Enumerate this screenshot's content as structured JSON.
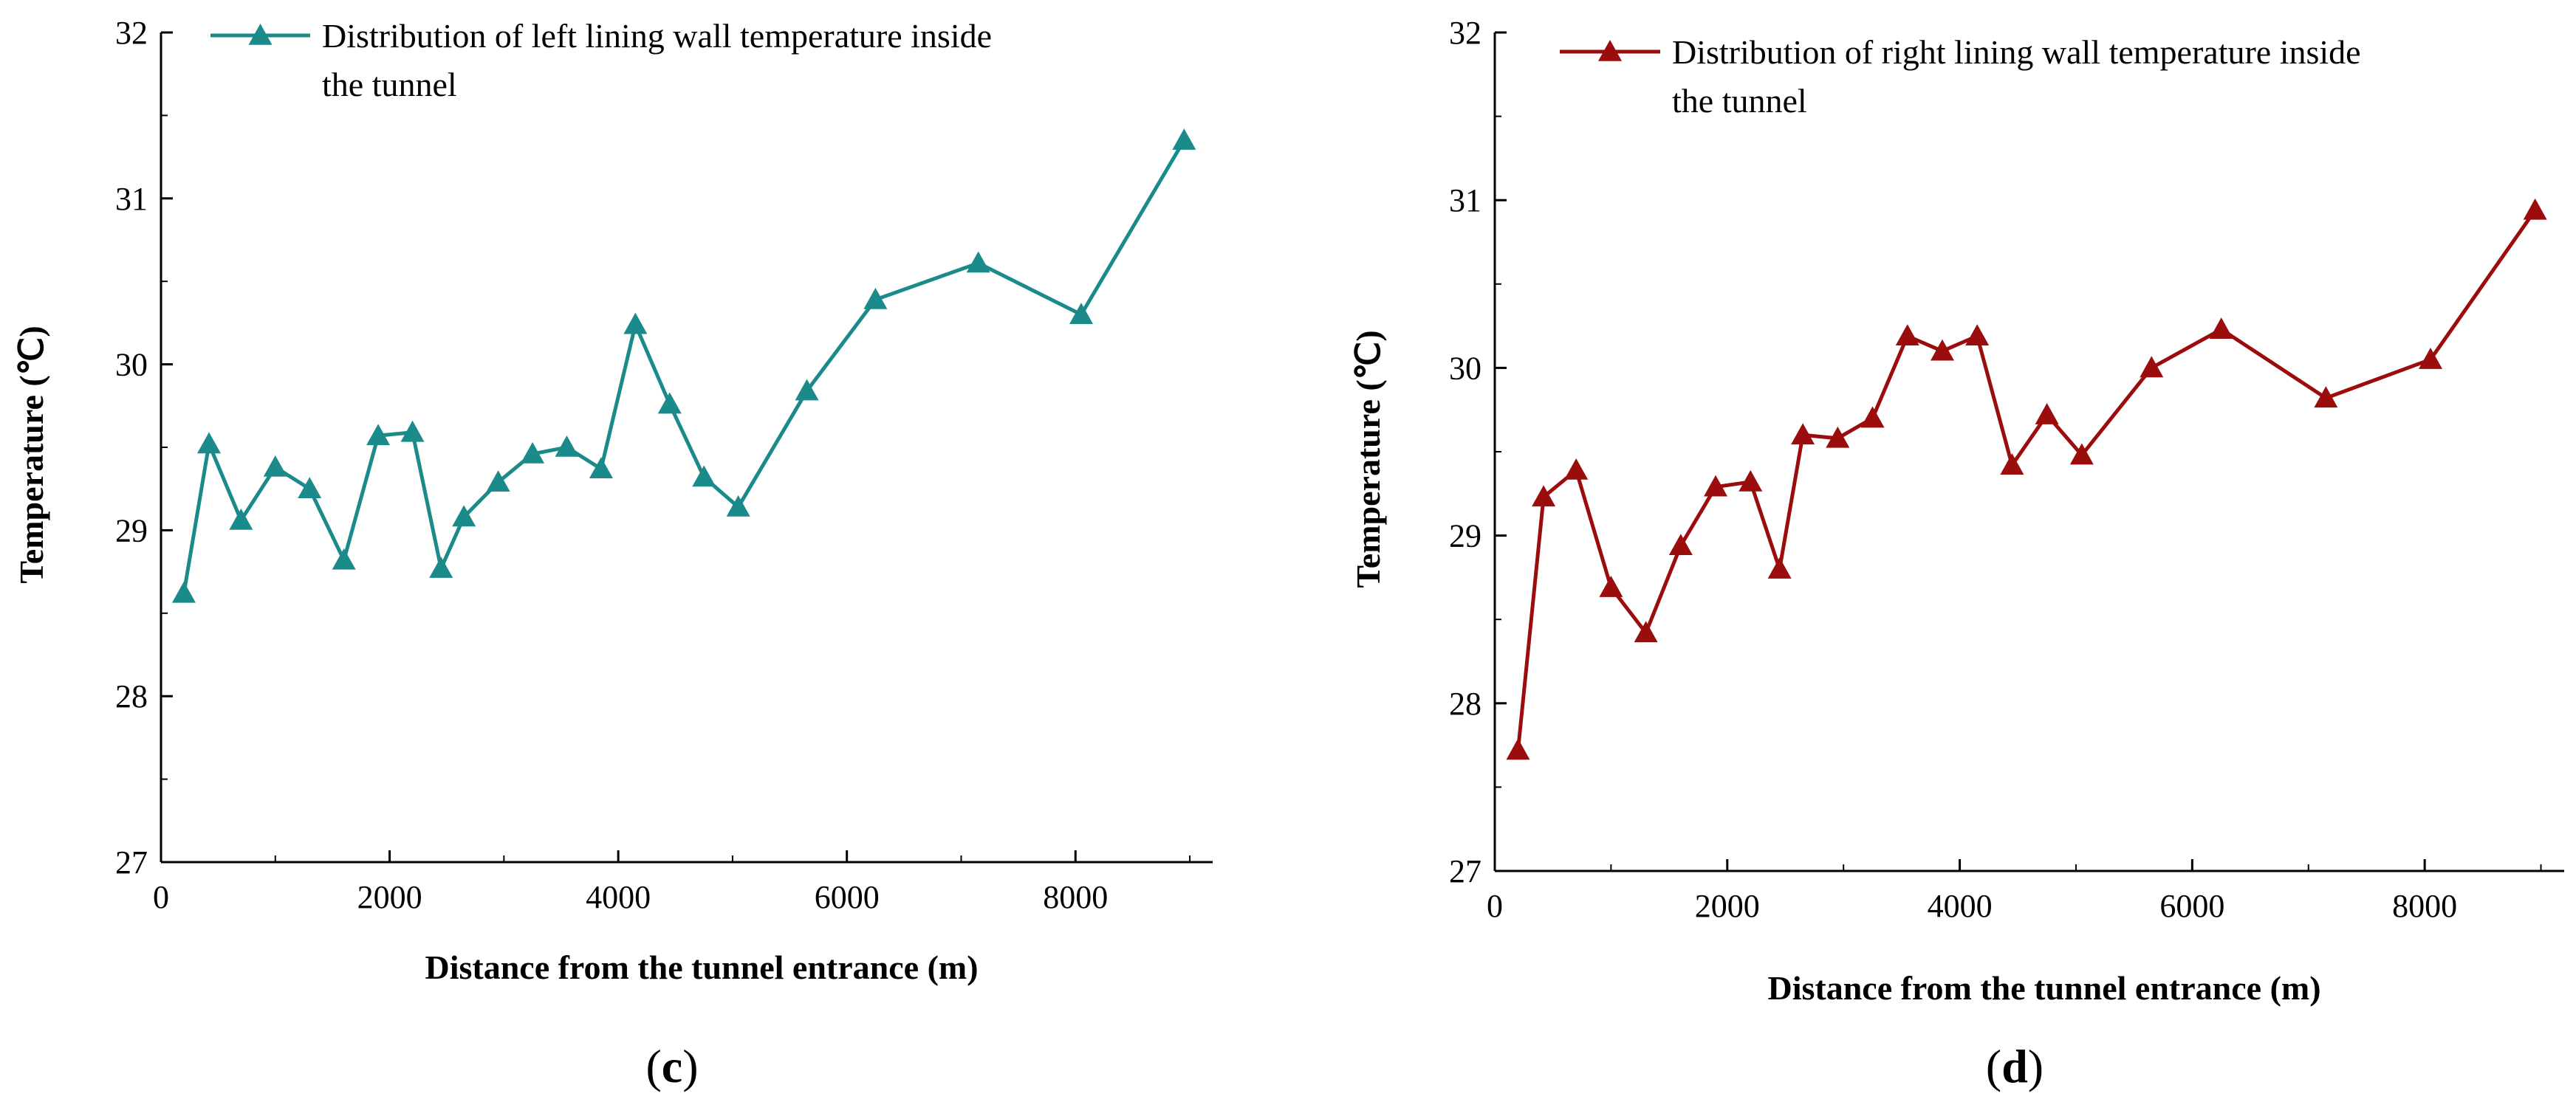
{
  "chart_data": [
    {
      "type": "line",
      "panel": "c",
      "title": "",
      "xlabel": "Distance from the tunnel entrance (m)",
      "ylabel": "Temperature  (℃)",
      "xlim": [
        0,
        9200
      ],
      "ylim": [
        27,
        32
      ],
      "xticks": [
        0,
        2000,
        4000,
        6000,
        8000
      ],
      "yticks": [
        27,
        28,
        29,
        30,
        31,
        32
      ],
      "grid": false,
      "legend_position": "top-right",
      "color": "#1a8a8a",
      "series": [
        {
          "name_lines": [
            "Distribution of left lining wall temperature inside",
            "the tunnel"
          ],
          "x": [
            200,
            420,
            700,
            1000,
            1300,
            1600,
            1900,
            2200,
            2450,
            2650,
            2950,
            3250,
            3550,
            3850,
            4150,
            4450,
            4750,
            5050,
            5650,
            6250,
            7150,
            8050,
            8950
          ],
          "y": [
            28.62,
            29.52,
            29.06,
            29.38,
            29.25,
            28.82,
            29.57,
            29.59,
            28.77,
            29.08,
            29.29,
            29.46,
            29.5,
            29.37,
            30.24,
            29.76,
            29.32,
            29.14,
            29.84,
            30.39,
            30.61,
            30.3,
            31.35
          ]
        }
      ],
      "panel_label": "(c)",
      "panel_label_parts": [
        "(",
        "c",
        ")"
      ]
    },
    {
      "type": "line",
      "panel": "d",
      "title": "",
      "xlabel": "Distance from the tunnel entrance (m)",
      "ylabel": "Temperature  (℃)",
      "xlim": [
        0,
        9200
      ],
      "ylim": [
        27,
        32
      ],
      "xticks": [
        0,
        2000,
        4000,
        6000,
        8000
      ],
      "yticks": [
        27,
        28,
        29,
        30,
        31,
        32
      ],
      "grid": false,
      "legend_position": "top-right",
      "color": "#9b0d0d",
      "series": [
        {
          "name_lines": [
            "Distribution of right lining wall temperature inside",
            "the tunnel"
          ],
          "x": [
            200,
            420,
            700,
            1000,
            1300,
            1600,
            1900,
            2200,
            2450,
            2650,
            2950,
            3250,
            3550,
            3850,
            4150,
            4450,
            4750,
            5050,
            5650,
            6250,
            7150,
            8050,
            8950
          ],
          "y": [
            27.72,
            29.23,
            29.39,
            28.69,
            28.42,
            28.94,
            29.29,
            29.32,
            28.8,
            29.6,
            29.58,
            29.7,
            30.19,
            30.1,
            30.19,
            29.42,
            29.72,
            29.48,
            30.0,
            30.23,
            29.82,
            30.05,
            30.94
          ]
        }
      ],
      "panel_label": "(d)",
      "panel_label_parts": [
        "(",
        "d",
        ")"
      ]
    }
  ]
}
